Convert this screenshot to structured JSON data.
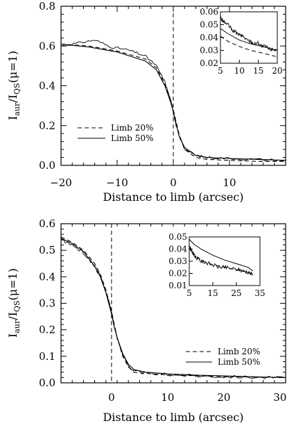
{
  "chart_data": [
    {
      "type": "line",
      "xlabel": "Distance to limb (arcsec)",
      "ylabel": "I_aur/I_QS(μ=1)",
      "xlim": [
        -20,
        20
      ],
      "ylim": [
        0.0,
        0.8
      ],
      "xticks": [
        -20,
        -10,
        0,
        10
      ],
      "yticks": [
        0.0,
        0.2,
        0.4,
        0.6,
        0.8
      ],
      "xtick_labels": [
        "−20",
        "−10",
        "0",
        "10"
      ],
      "ytick_labels": [
        "0.0",
        "0.2",
        "0.4",
        "0.6",
        "0.8"
      ],
      "legend": {
        "placement": "lower-left",
        "entries": [
          "Limb 20%",
          "Limb 50%"
        ]
      },
      "series": [
        {
          "name": "Limb 20%",
          "style": "dashed",
          "x": [
            -20,
            -15,
            -10,
            -5,
            -3,
            -1.5,
            -0.5,
            0,
            0.5,
            1,
            2,
            4,
            6,
            10,
            15,
            20
          ],
          "y": [
            0.61,
            0.6,
            0.575,
            0.535,
            0.49,
            0.41,
            0.33,
            0.28,
            0.22,
            0.16,
            0.08,
            0.04,
            0.03,
            0.025,
            0.02,
            0.02
          ]
        },
        {
          "name": "Limb 50%",
          "style": "solid",
          "x": [
            -20,
            -15,
            -10,
            -5,
            -3,
            -1.5,
            -0.5,
            0,
            0.5,
            1,
            2,
            4,
            6,
            10,
            15,
            20
          ],
          "y": [
            0.61,
            0.595,
            0.57,
            0.525,
            0.48,
            0.4,
            0.32,
            0.27,
            0.21,
            0.15,
            0.09,
            0.05,
            0.04,
            0.035,
            0.03,
            0.025
          ]
        },
        {
          "name": "",
          "style": "noisy",
          "x": [
            -20,
            -17,
            -14,
            -11,
            -8,
            -5,
            -3,
            -1.5,
            -0.5,
            0,
            0.5,
            1,
            2,
            4,
            6,
            10,
            15,
            20
          ],
          "y": [
            0.6,
            0.615,
            0.63,
            0.595,
            0.58,
            0.55,
            0.5,
            0.42,
            0.33,
            0.27,
            0.2,
            0.15,
            0.085,
            0.05,
            0.04,
            0.035,
            0.03,
            0.025
          ]
        }
      ],
      "vline_x": 0,
      "inset": {
        "xlim": [
          5,
          20
        ],
        "ylim": [
          0.02,
          0.06
        ],
        "xticks": [
          5,
          10,
          15,
          20
        ],
        "yticks": [
          0.02,
          0.03,
          0.04,
          0.05,
          0.06
        ],
        "xtick_labels": [
          "5",
          "10",
          "15",
          "20"
        ],
        "ytick_labels": [
          "0.02",
          "0.03",
          "0.04",
          "0.05",
          "0.06"
        ],
        "series": [
          {
            "name": "Limb 20%",
            "style": "dashed",
            "x": [
              5,
              7,
              10,
              13,
              16,
              20
            ],
            "y": [
              0.041,
              0.037,
              0.033,
              0.03,
              0.028,
              0.025
            ]
          },
          {
            "name": "Limb 50%",
            "style": "solid",
            "x": [
              5,
              7,
              10,
              13,
              16,
              20
            ],
            "y": [
              0.047,
              0.043,
              0.038,
              0.035,
              0.033,
              0.03
            ]
          },
          {
            "name": "",
            "style": "noisy",
            "x": [
              5,
              6,
              7,
              8,
              9,
              10,
              11,
              12,
              13,
              14,
              15,
              16,
              17,
              18,
              19,
              20
            ],
            "y": [
              0.055,
              0.052,
              0.05,
              0.046,
              0.044,
              0.042,
              0.041,
              0.038,
              0.037,
              0.035,
              0.036,
              0.033,
              0.033,
              0.031,
              0.031,
              0.03
            ]
          }
        ]
      }
    },
    {
      "type": "line",
      "xlabel": "Distance to limb (arcsec)",
      "ylabel": "I_aur/I_QS(μ=1)",
      "xlim": [
        -9,
        31
      ],
      "ylim": [
        0.0,
        0.6
      ],
      "xticks": [
        0,
        10,
        20,
        30
      ],
      "yticks": [
        0.0,
        0.1,
        0.2,
        0.3,
        0.4,
        0.5,
        0.6
      ],
      "xtick_labels": [
        "0",
        "10",
        "20",
        "30"
      ],
      "ytick_labels": [
        "0.0",
        "0.1",
        "0.2",
        "0.3",
        "0.4",
        "0.5",
        "0.6"
      ],
      "legend": {
        "placement": "lower-right",
        "entries": [
          "Limb 20%",
          "Limb 50%"
        ]
      },
      "series": [
        {
          "name": "Limb 20%",
          "style": "dashed",
          "x": [
            -9,
            -7,
            -5,
            -3,
            -2,
            -1,
            -0.5,
            0,
            0.5,
            1,
            2,
            3,
            4,
            6,
            10,
            15,
            20,
            25,
            31
          ],
          "y": [
            0.55,
            0.53,
            0.5,
            0.45,
            0.41,
            0.35,
            0.31,
            0.27,
            0.22,
            0.17,
            0.1,
            0.06,
            0.04,
            0.035,
            0.03,
            0.027,
            0.024,
            0.022,
            0.02
          ]
        },
        {
          "name": "Limb 50%",
          "style": "solid",
          "x": [
            -9,
            -7,
            -5,
            -3,
            -2,
            -1,
            -0.5,
            0,
            0.5,
            1,
            2,
            3,
            4,
            6,
            10,
            15,
            20,
            25,
            31
          ],
          "y": [
            0.545,
            0.525,
            0.495,
            0.44,
            0.4,
            0.34,
            0.3,
            0.26,
            0.21,
            0.17,
            0.11,
            0.07,
            0.05,
            0.04,
            0.034,
            0.029,
            0.026,
            0.023,
            0.02
          ]
        },
        {
          "name": "",
          "style": "noisy",
          "x": [
            -9,
            -7,
            -5,
            -3,
            -2,
            -1,
            -0.5,
            0,
            0.5,
            1,
            2,
            3,
            4,
            6,
            10,
            15,
            20,
            25,
            31
          ],
          "y": [
            0.54,
            0.52,
            0.49,
            0.44,
            0.4,
            0.345,
            0.305,
            0.265,
            0.215,
            0.17,
            0.105,
            0.065,
            0.045,
            0.036,
            0.031,
            0.027,
            0.024,
            0.022,
            0.019
          ]
        }
      ],
      "vline_x": 0,
      "inset": {
        "xlim": [
          5,
          35
        ],
        "ylim": [
          0.01,
          0.05
        ],
        "xticks": [
          5,
          15,
          25,
          35
        ],
        "yticks": [
          0.01,
          0.02,
          0.03,
          0.04,
          0.05
        ],
        "xtick_labels": [
          "5",
          "15",
          "25",
          "35"
        ],
        "ytick_labels": [
          "0.01",
          "0.02",
          "0.03",
          "0.04",
          "0.05"
        ],
        "series": [
          {
            "name": "Limb 20%",
            "style": "dashed",
            "x": [
              5,
              7,
              10,
              15,
              20,
              25,
              30,
              32
            ],
            "y": [
              0.043,
              0.036,
              0.031,
              0.027,
              0.025,
              0.023,
              0.021,
              0.019
            ]
          },
          {
            "name": "Limb 50%",
            "style": "solid",
            "x": [
              5,
              7,
              10,
              15,
              20,
              25,
              30,
              32
            ],
            "y": [
              0.048,
              0.044,
              0.04,
              0.035,
              0.031,
              0.028,
              0.025,
              0.022
            ]
          },
          {
            "name": "",
            "style": "noisy",
            "x": [
              5,
              6,
              7,
              8,
              10,
              12,
              15,
              18,
              20,
              23,
              26,
              28,
              30,
              32
            ],
            "y": [
              0.042,
              0.038,
              0.035,
              0.033,
              0.03,
              0.029,
              0.027,
              0.025,
              0.025,
              0.024,
              0.023,
              0.022,
              0.021,
              0.019
            ]
          }
        ]
      }
    }
  ]
}
